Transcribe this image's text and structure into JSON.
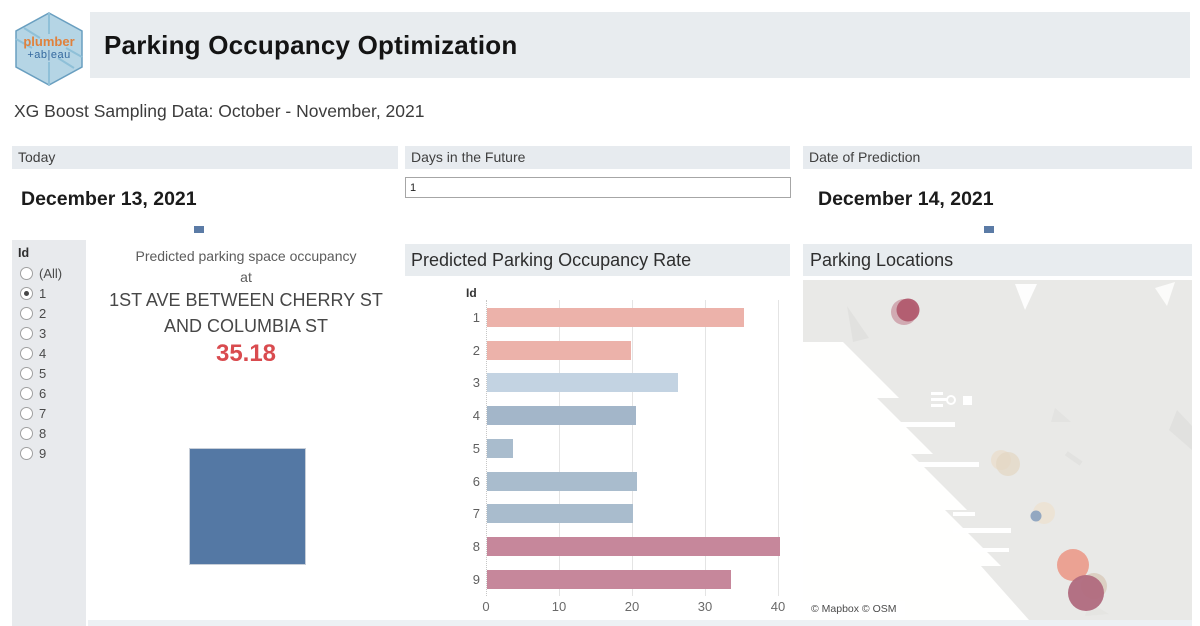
{
  "header": {
    "title": "Parking Occupancy Optimization",
    "logo": {
      "word1": "plumber",
      "word2": "+ab|eau"
    }
  },
  "subtitle": "XG Boost Sampling Data: October - November, 2021",
  "filters": {
    "today": {
      "label": "Today",
      "value": "December 13, 2021",
      "mark_color": "#5b7ba6"
    },
    "days_future": {
      "label": "Days in the Future",
      "value": "1"
    },
    "prediction": {
      "label": "Date of Prediction",
      "value": "December 14, 2021",
      "mark_color": "#5b7ba6"
    }
  },
  "id_filter": {
    "title": "Id",
    "options": [
      "(All)",
      "1",
      "2",
      "3",
      "4",
      "5",
      "6",
      "7",
      "8",
      "9"
    ],
    "selected": "1"
  },
  "prediction_panel": {
    "line1": "Predicted parking space occupancy",
    "line2": "at",
    "line3": "1ST AVE BETWEEN CHERRY ST",
    "line4": "AND COLUMBIA ST",
    "value": "35.18",
    "value_color": "#d94b4f",
    "mark_color": "#5478a4"
  },
  "chart_data": {
    "type": "bar",
    "orientation": "horizontal",
    "title": "Predicted Parking Occupancy Rate",
    "category_label": "Id",
    "categories": [
      "1",
      "2",
      "3",
      "4",
      "5",
      "6",
      "7",
      "8",
      "9"
    ],
    "values": [
      35.18,
      19.7,
      26.1,
      20.4,
      3.6,
      20.5,
      20.0,
      40.2,
      33.4
    ],
    "colors": [
      "#ecb2aa",
      "#ecb2aa",
      "#c3d3e2",
      "#a3b6c9",
      "#a9bccd",
      "#a9bccd",
      "#a9bccd",
      "#c6879b",
      "#c6879b"
    ],
    "xlim": [
      0,
      40
    ],
    "xticks": [
      0,
      10,
      20,
      30,
      40
    ],
    "grid": true
  },
  "map": {
    "title": "Parking Locations",
    "attribution": "© Mapbox  © OSM",
    "background": "#e9e9e7",
    "points": [
      {
        "x": 101,
        "y": 32,
        "r": 13,
        "color": "#c2808f",
        "opacity": 0.6
      },
      {
        "x": 105,
        "y": 30,
        "r": 11.5,
        "color": "#b15a6e",
        "opacity": 0.95
      },
      {
        "x": 198,
        "y": 180,
        "r": 10,
        "color": "#eadfcf",
        "opacity": 0.9
      },
      {
        "x": 205,
        "y": 184,
        "r": 12,
        "color": "#e2d5c2",
        "opacity": 0.7
      },
      {
        "x": 241,
        "y": 233,
        "r": 11,
        "color": "#ece2d3",
        "opacity": 0.9
      },
      {
        "x": 233,
        "y": 236,
        "r": 5.5,
        "color": "#8ea4c0",
        "opacity": 0.95
      },
      {
        "x": 270,
        "y": 285,
        "r": 16,
        "color": "#eb9e8e",
        "opacity": 0.95
      },
      {
        "x": 291,
        "y": 306,
        "r": 13,
        "color": "#d8c9ba",
        "opacity": 0.8
      },
      {
        "x": 283,
        "y": 313,
        "r": 18,
        "color": "#b06a7e",
        "opacity": 0.95
      }
    ]
  }
}
